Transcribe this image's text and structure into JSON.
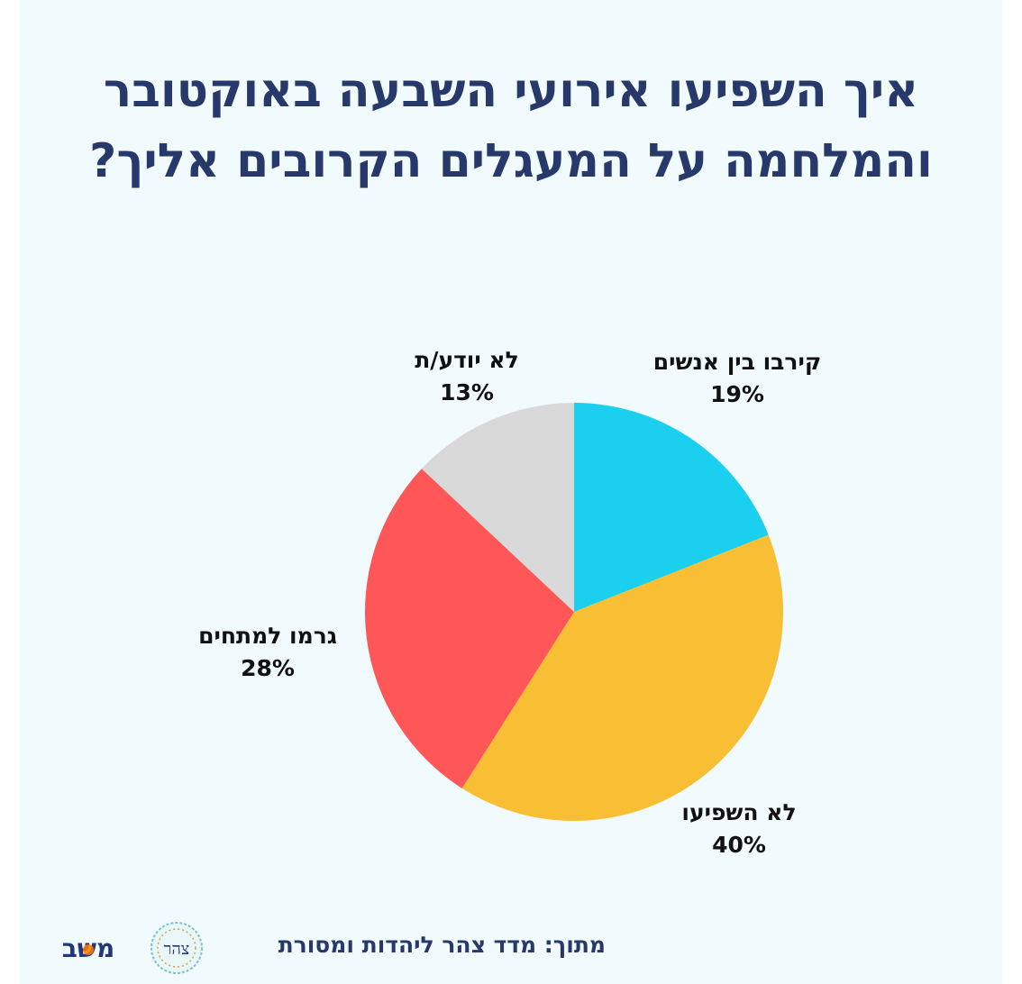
{
  "title": {
    "line1": "איך השפיעו אירועי השבעה באוקטובר",
    "line2": "והמלחמה על המעגלים הקרובים אליך?"
  },
  "chart_data": {
    "type": "pie",
    "title": "איך השפיעו אירועי השבעה באוקטובר והמלחמה על המעגלים הקרובים אליך?",
    "slices": [
      {
        "label": "קירבו בין אנשים",
        "value": 19,
        "display": "19%",
        "color": "#1bcfef"
      },
      {
        "label": "לא השפיעו",
        "value": 40,
        "display": "40%",
        "color": "#f9bf34"
      },
      {
        "label": "גרמו למתחים",
        "value": 28,
        "display": "28%",
        "color": "#ff5757"
      },
      {
        "label": "לא יודע/ת",
        "value": 13,
        "display": "13%",
        "color": "#d9d9d9"
      }
    ],
    "start": "12 o'clock",
    "direction": "clockwise"
  },
  "footer": {
    "source": "מתוך: מדד צהר ליהדות ומסורת",
    "seal_text": "צהר",
    "brand_text": "משב"
  }
}
